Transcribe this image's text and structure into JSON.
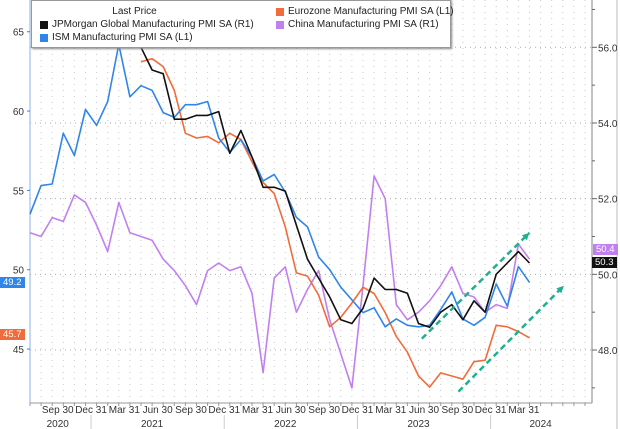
{
  "chart_data": {
    "type": "line",
    "title": "",
    "legend_title": "Last Price",
    "legend_placement": "top-left",
    "period": "monthly",
    "x_tick_labels": [
      "Sep 30",
      "Dec 31",
      "Mar 31",
      "Jun 30",
      "Sep 30",
      "Dec 31",
      "Mar 31",
      "Jun 30",
      "Sep 30",
      "Dec 31",
      "Mar 31",
      "Jun 30",
      "Sep 30",
      "Dec 31",
      "Mar 31"
    ],
    "x_tick_month_index": [
      2,
      5,
      8,
      11,
      14,
      17,
      20,
      23,
      26,
      29,
      32,
      35,
      38,
      41,
      44
    ],
    "year_labels": [
      "2020",
      "2021",
      "2022",
      "2023",
      "2024"
    ],
    "year_label_month_index": [
      2.5,
      11,
      23,
      35,
      46
    ],
    "left_axis": {
      "ticks": [
        "45",
        "50",
        "55",
        "60",
        "65"
      ],
      "tick_values": [
        45,
        50,
        55,
        60,
        65
      ],
      "ylim": [
        41.6,
        67.0
      ]
    },
    "right_axis": {
      "ticks": [
        "48.0",
        "50.0",
        "52.0",
        "54.0",
        "56.0"
      ],
      "tick_values": [
        48,
        50,
        52,
        54,
        56
      ],
      "ylim": [
        46.6,
        57.25
      ]
    },
    "series": [
      {
        "name": "JPMorgan Global Manufacturing PMI SA  (R1)",
        "axis": "right",
        "color": "#111111",
        "last_value": "50.3",
        "values": [
          null,
          null,
          null,
          null,
          null,
          null,
          null,
          null,
          null,
          null,
          56.0,
          55.4,
          55.3,
          54.1,
          54.1,
          54.2,
          54.2,
          54.3,
          53.2,
          53.8,
          53.1,
          52.3,
          52.3,
          52.2,
          51.3,
          50.4,
          49.9,
          49.4,
          48.8,
          48.7,
          49.1,
          49.9,
          49.6,
          49.6,
          49.5,
          48.7,
          48.6,
          49.0,
          49.2,
          48.8,
          49.3,
          49.0,
          50.0,
          50.3,
          50.6,
          50.3
        ]
      },
      {
        "name": "ISM Manufacturing PMI SA  (L1)",
        "axis": "left",
        "color": "#2f86e8",
        "last_value": "49.2",
        "values": [
          53.5,
          55.3,
          55.4,
          58.6,
          57.2,
          60.1,
          59.1,
          60.6,
          64.2,
          60.9,
          61.6,
          61.3,
          59.9,
          59.6,
          60.4,
          60.4,
          60.6,
          58.3,
          57.4,
          58.2,
          57.1,
          55.6,
          56.0,
          54.9,
          53.3,
          52.7,
          50.8,
          50.0,
          48.9,
          48.1,
          47.3,
          47.6,
          46.4,
          46.9,
          46.5,
          46.4,
          46.5,
          47.5,
          48.6,
          46.9,
          46.5,
          47.0,
          49.1,
          47.7,
          50.2,
          49.2
        ]
      },
      {
        "name": "Eurozone Manufacturing PMI SA  (L1)",
        "axis": "left",
        "color": "#f26b3a",
        "last_value": "45.7",
        "values": [
          null,
          null,
          null,
          null,
          null,
          null,
          null,
          null,
          null,
          null,
          63.1,
          63.3,
          62.8,
          61.3,
          58.6,
          58.3,
          58.4,
          58.0,
          58.6,
          58.2,
          56.8,
          55.5,
          54.8,
          52.7,
          49.8,
          49.6,
          48.4,
          46.4,
          47.0,
          47.9,
          48.9,
          48.5,
          47.3,
          45.8,
          44.8,
          43.3,
          42.6,
          43.5,
          43.3,
          43.1,
          44.2,
          44.3,
          46.5,
          46.4,
          46.1,
          45.7
        ]
      },
      {
        "name": "China Manufacturing PMI SA  (R1)",
        "axis": "right",
        "color": "#c27ff0",
        "last_value": "50.4",
        "values": [
          51.1,
          51.0,
          51.5,
          51.4,
          52.1,
          51.9,
          51.3,
          50.6,
          51.9,
          51.1,
          51.0,
          50.9,
          50.4,
          50.1,
          49.7,
          49.2,
          50.1,
          50.3,
          50.1,
          50.2,
          49.5,
          47.4,
          49.9,
          50.2,
          49.0,
          49.6,
          50.1,
          48.8,
          47.9,
          47.0,
          49.7,
          52.6,
          52.0,
          49.2,
          48.8,
          49.0,
          49.3,
          49.7,
          50.2,
          49.5,
          49.4,
          49.0,
          49.2,
          49.1,
          50.8,
          50.4
        ]
      }
    ],
    "annotations": [
      {
        "type": "dashed-arrow",
        "color": "#1fb08f",
        "from": {
          "month_index": 35.3,
          "right_value": 48.3
        },
        "to": {
          "month_index": 45,
          "right_value": 51.1
        }
      },
      {
        "type": "dashed-arrow",
        "color": "#1fb08f",
        "from": {
          "month_index": 38.6,
          "right_value": 46.9
        },
        "to": {
          "month_index": 48.1,
          "right_value": 49.7
        }
      }
    ]
  }
}
